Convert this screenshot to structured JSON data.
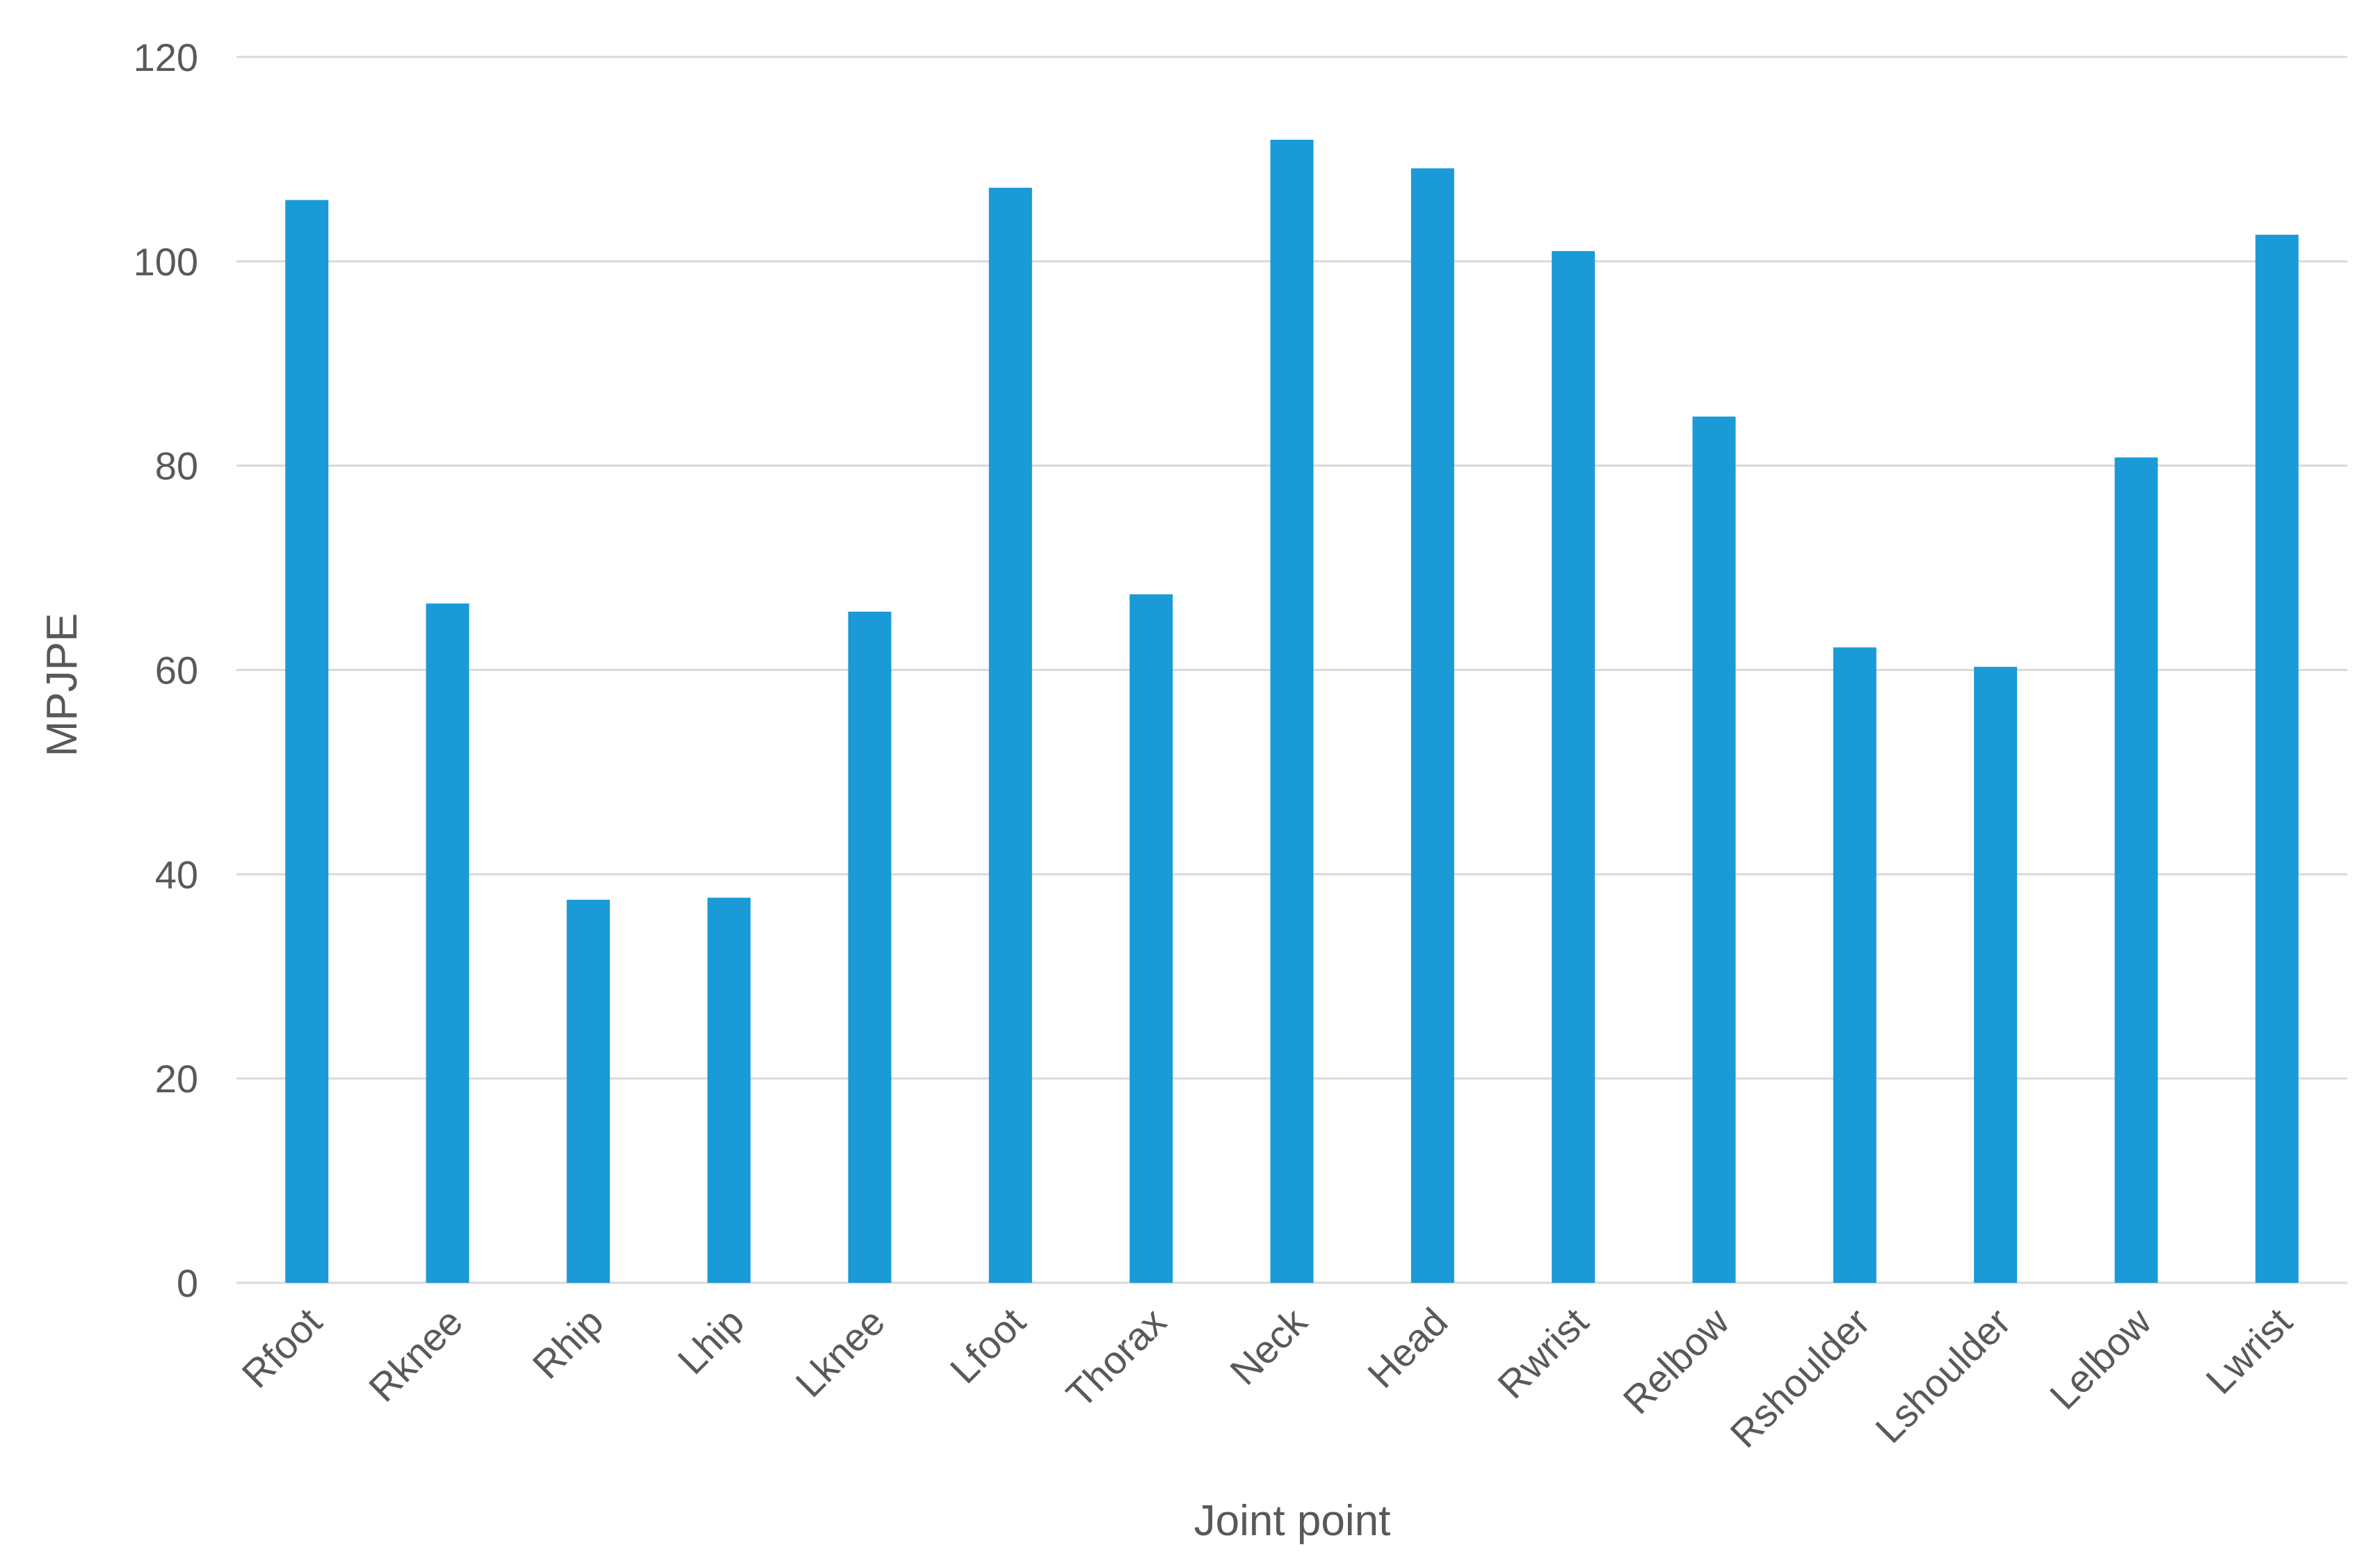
{
  "chart_data": {
    "type": "bar",
    "title": "",
    "xlabel": "Joint point",
    "ylabel": "MPJPE",
    "ylim": [
      0,
      120
    ],
    "yticks": [
      0,
      20,
      40,
      60,
      80,
      100,
      120
    ],
    "grid": true,
    "legend": "none",
    "categories": [
      "Rfoot",
      "Rknee",
      "Rhip",
      "Lhip",
      "Lknee",
      "Lfoot",
      "Thorax",
      "Neck",
      "Head",
      "Rwrist",
      "Relbow",
      "Rshoulder",
      "Lshoulder",
      "Lelbow",
      "Lwrist"
    ],
    "series": [
      {
        "color": "#1a9ad6",
        "values": [
          106,
          66.5,
          37.5,
          37.7,
          65.7,
          107.2,
          67.4,
          111.9,
          109.1,
          101,
          84.8,
          62.2,
          60.3,
          80.8,
          102.6
        ]
      }
    ]
  },
  "colors": {
    "bar": "#1a9ad6",
    "grid": "#d9d9d9",
    "text": "#595959"
  }
}
